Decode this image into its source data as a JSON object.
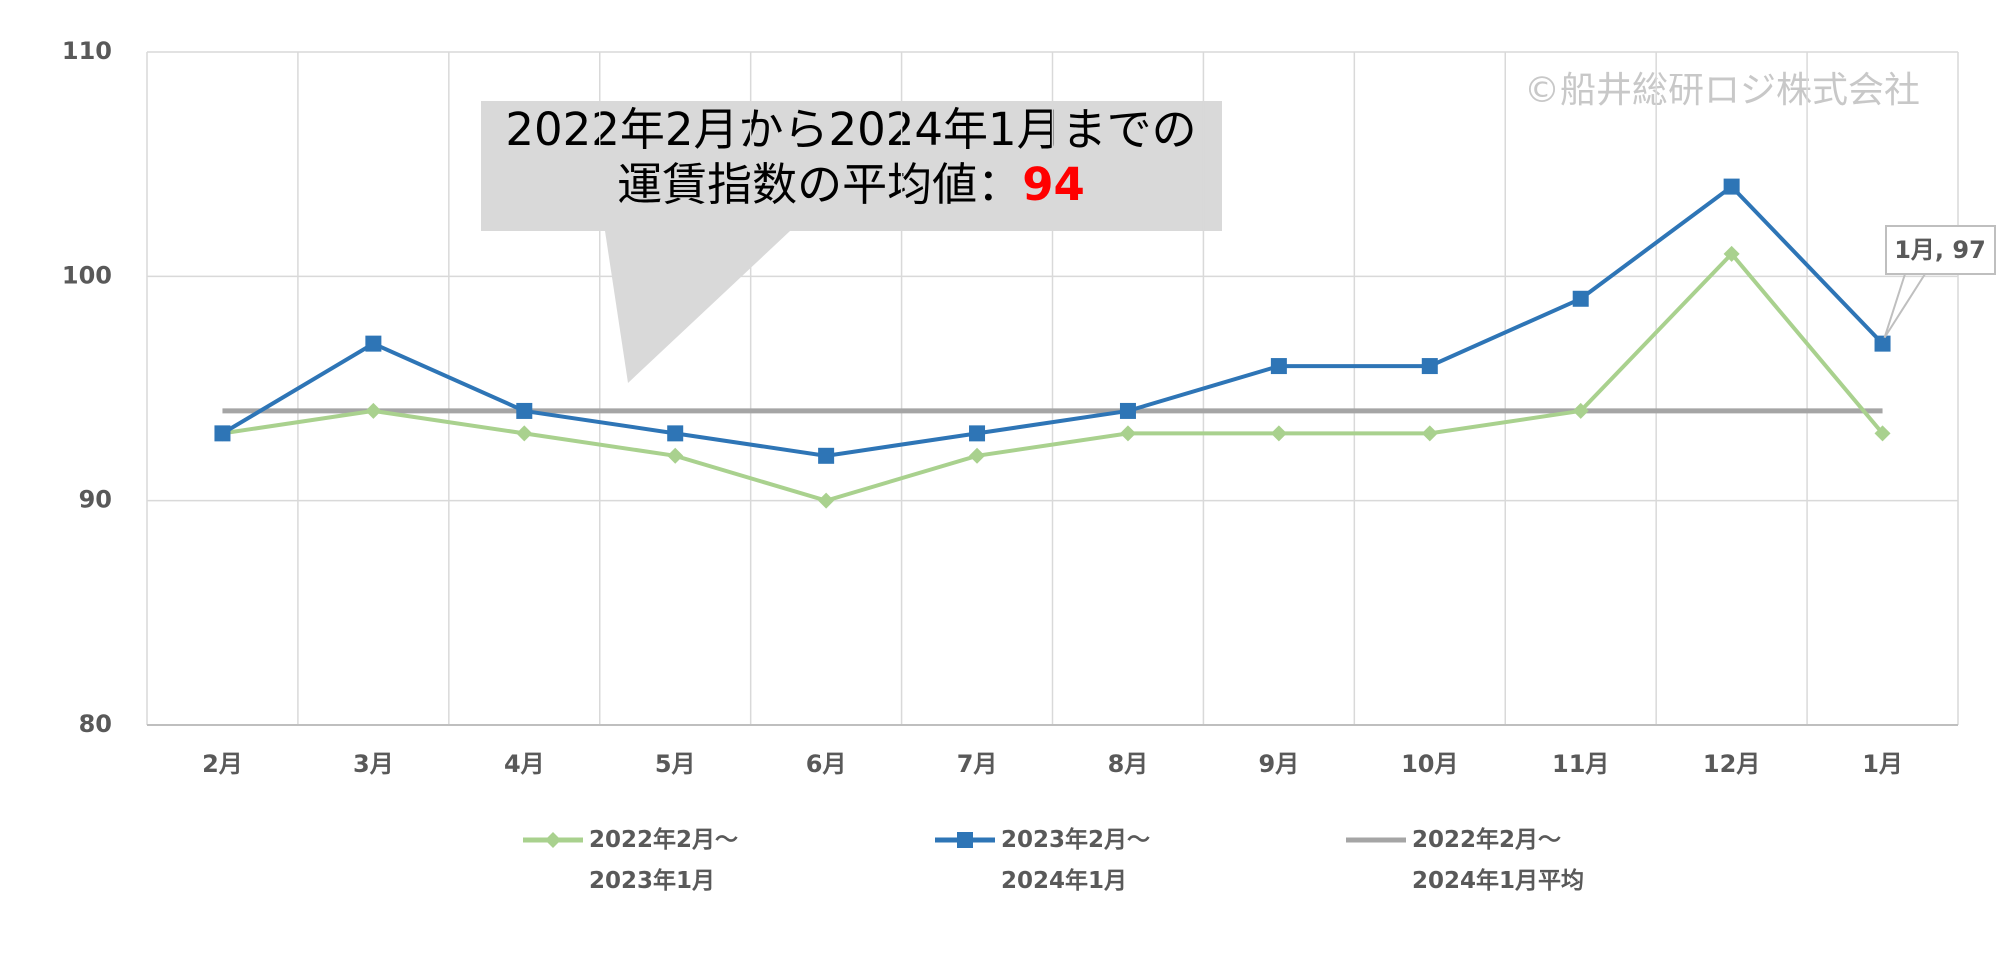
{
  "chart_data": {
    "type": "line",
    "categories": [
      "2月",
      "3月",
      "4月",
      "5月",
      "6月",
      "7月",
      "8月",
      "9月",
      "10月",
      "11月",
      "12月",
      "1月"
    ],
    "series": [
      {
        "name": "2022年2月～\n2023年1月",
        "color": "#a9d18e",
        "marker": "diamond",
        "values": [
          93,
          94,
          93,
          92,
          90,
          92,
          93,
          93,
          93,
          94,
          101,
          93
        ]
      },
      {
        "name": "2023年2月～\n2024年1月",
        "color": "#2e75b6",
        "marker": "square",
        "values": [
          93,
          97,
          94,
          93,
          92,
          93,
          94,
          96,
          96,
          99,
          104,
          97
        ]
      },
      {
        "name": "2022年2月～\n2024年1月平均",
        "color": "#a5a5a5",
        "marker": "none",
        "values": [
          94,
          94,
          94,
          94,
          94,
          94,
          94,
          94,
          94,
          94,
          94,
          94
        ]
      }
    ],
    "ylim": [
      80,
      110
    ],
    "yticks": [
      80,
      90,
      100,
      110
    ],
    "grid": true,
    "callout": {
      "line1": "2022年2月から2024年1月までの",
      "line2": "運賃指数の平均値：",
      "highlight": "94"
    },
    "point_label": "1月, 97",
    "watermark": "©船井総研ロジ株式会社"
  }
}
